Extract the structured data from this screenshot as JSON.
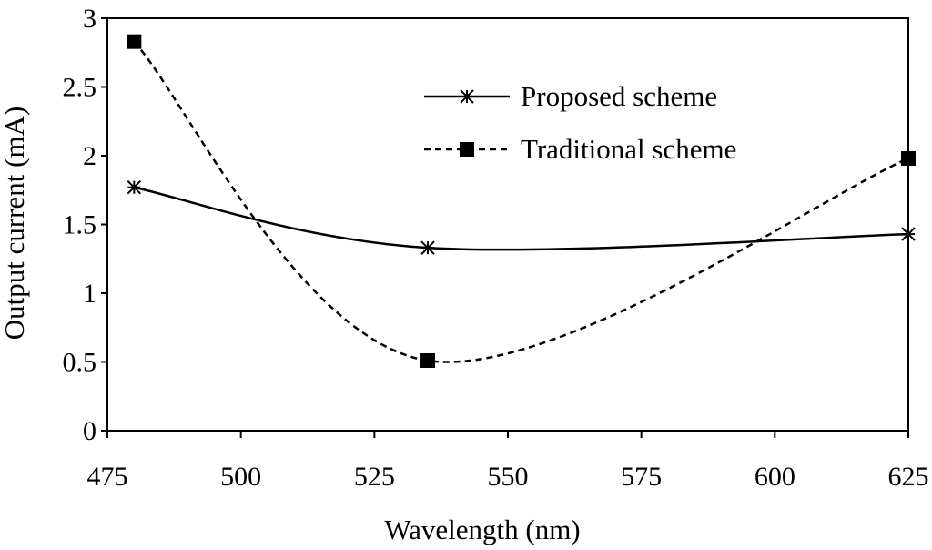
{
  "chart_data": {
    "type": "line",
    "title": "",
    "xlabel": "Wavelength (nm)",
    "ylabel": "Output current (mA)",
    "xlim": [
      475,
      625
    ],
    "ylim": [
      0,
      3
    ],
    "x_ticks": [
      475,
      500,
      525,
      550,
      575,
      600,
      625
    ],
    "y_ticks": [
      0,
      0.5,
      1,
      1.5,
      2,
      2.5,
      3
    ],
    "y_tick_labels": [
      "0",
      "0.5",
      "1",
      "1.5",
      "2",
      "2.5",
      "3"
    ],
    "grid": false,
    "smooth": true,
    "legend_position": "top-right",
    "series": [
      {
        "name": "Proposed scheme",
        "marker": "asterisk",
        "line_style": "solid",
        "color": "#000000",
        "x": [
          480,
          535,
          625
        ],
        "y": [
          1.77,
          1.33,
          1.43
        ]
      },
      {
        "name": "Traditional scheme",
        "marker": "square",
        "line_style": "dashed",
        "color": "#000000",
        "x": [
          480,
          535,
          625
        ],
        "y": [
          2.83,
          0.51,
          1.98
        ]
      }
    ]
  }
}
